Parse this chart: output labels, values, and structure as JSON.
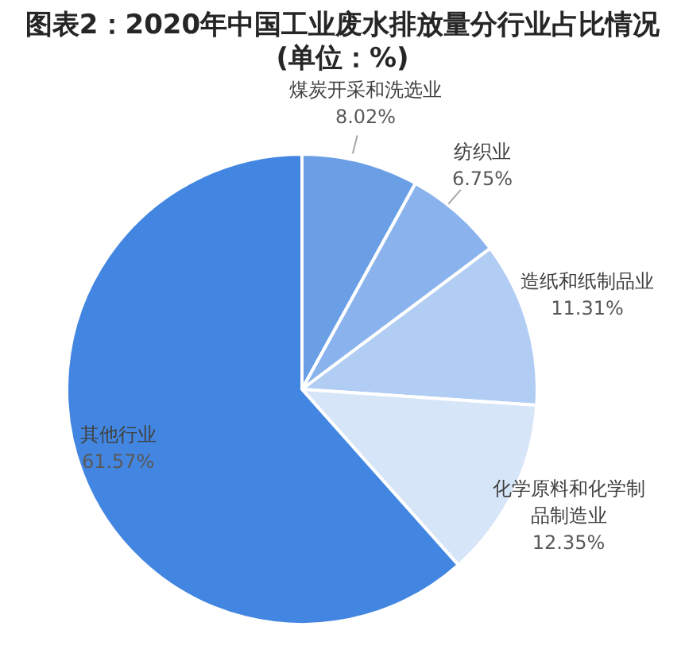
{
  "chart_data": {
    "type": "pie",
    "title": "图表2：2020年中国工业废水排放量分行业占比情况",
    "subtitle": "(单位：%)",
    "categories": [
      "煤炭开采和洗选业",
      "纺织业",
      "造纸和纸制品业",
      "化学原料和化学制品制造业",
      "其他行业"
    ],
    "values": [
      8.02,
      6.75,
      11.31,
      12.35,
      61.57
    ],
    "colors": [
      "#6a9fe6",
      "#8ab3ee",
      "#b1cdf4",
      "#d7e5f9",
      "#4286e1"
    ],
    "value_labels": [
      "8.02%",
      "6.75%",
      "11.31%",
      "12.35%",
      "61.57%"
    ]
  }
}
